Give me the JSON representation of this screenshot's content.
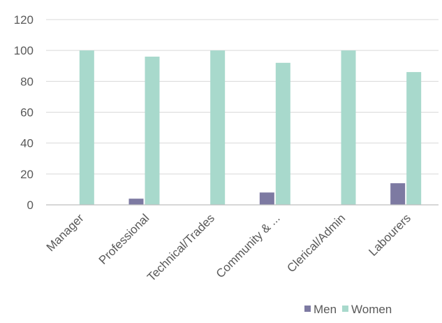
{
  "chart_data": {
    "type": "bar",
    "categories": [
      "Manager",
      "Professional",
      "Technical/Trades",
      "Community & ...",
      "Clerical/Admin",
      "Labourers"
    ],
    "series": [
      {
        "name": "Men",
        "color": "#7d7aa2",
        "values": [
          0,
          4,
          0,
          8,
          0,
          14
        ]
      },
      {
        "name": "Women",
        "color": "#a8d9cc",
        "values": [
          100,
          96,
          100,
          92,
          100,
          86
        ]
      }
    ],
    "yticks": [
      0,
      20,
      40,
      60,
      80,
      100,
      120
    ],
    "ylim": [
      0,
      120
    ],
    "grid": true,
    "legend_position": "bottom-right",
    "gridline_color": "#d9d9d9",
    "axis_line_color": "#bfbfbf",
    "text_color": "#595959"
  }
}
